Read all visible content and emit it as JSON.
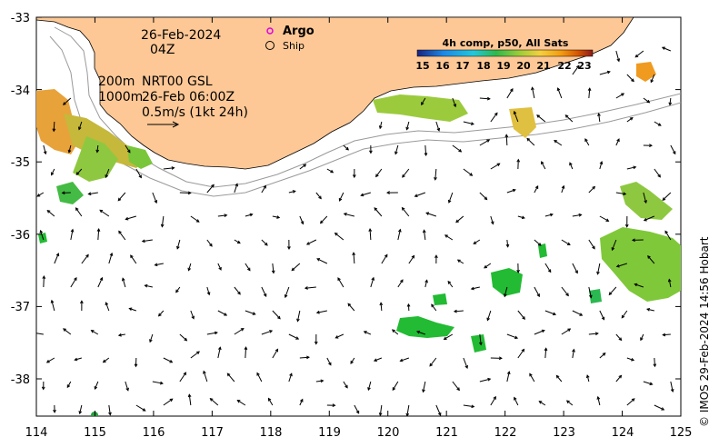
{
  "map": {
    "date": "26-Feb-2024",
    "time": "04Z",
    "legend_argo": "Argo",
    "legend_ship": "Ship",
    "depth_200": "200m",
    "depth_1000": "1000m",
    "current_product": "NRT00 GSL",
    "current_time": "26-Feb 06:00Z",
    "scale_arrow": "0.5m/s (1kt 24h)",
    "colorbar_title": "4h comp, p50, All Sats",
    "colorbar_ticks": [
      "15",
      "16",
      "17",
      "18",
      "19",
      "20",
      "21",
      "22",
      "23"
    ],
    "lon_ticks": [
      "114",
      "115",
      "116",
      "117",
      "118",
      "119",
      "120",
      "121",
      "122",
      "123",
      "124",
      "125"
    ],
    "lat_ticks": [
      "-33",
      "-34",
      "-35",
      "-36",
      "-37",
      "-38"
    ],
    "credit": "© IMOS 29-Feb-2024 14:56 Hobart",
    "colors": {
      "land": "#fdc896",
      "sst_cool": "#22bb22",
      "sst_mid": "#88cc33",
      "sst_warm": "#f0a020"
    }
  }
}
